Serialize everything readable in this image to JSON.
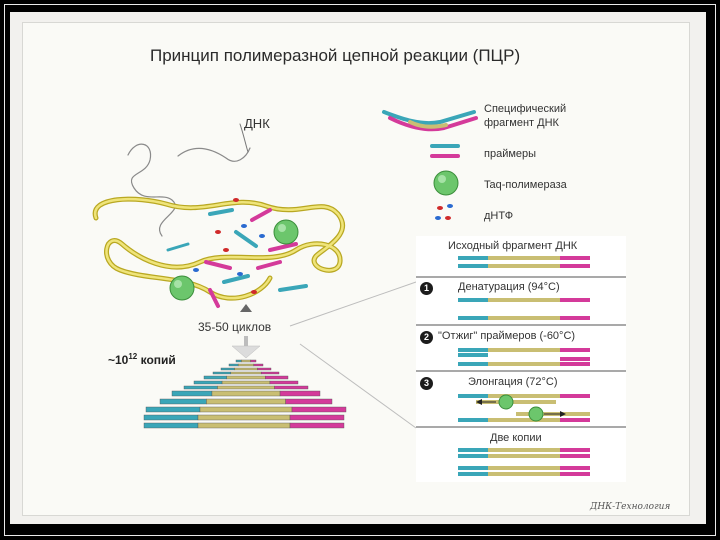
{
  "title": "Принцип полимеразной цепной реакции (ПЦР)",
  "dna_label": "ДНК",
  "cycles_label": "35-50 циклов",
  "copies": {
    "prefix": "~10",
    "exponent": "12",
    "suffix": " копий"
  },
  "legend": {
    "fragment": [
      "Специфический",
      "фрагмент ДНК"
    ],
    "primers": "праймеры",
    "taq": "Taq-полимераза",
    "dntp": "дНТФ"
  },
  "steps": {
    "initial": "Исходный фрагмент ДНК",
    "step1": {
      "num": "1",
      "label": "Денатурация (94°С)"
    },
    "step2": {
      "num": "2",
      "label": "\"Отжиг\" праймеров (-60°С)"
    },
    "step3": {
      "num": "3",
      "label": "Элонгация (72°С)"
    },
    "final": "Две копии"
  },
  "signature": "ДНК-Технология",
  "colors": {
    "teal": "#3aa6b8",
    "pink": "#d43a9a",
    "khaki": "#c9be73",
    "yellow": "#d8c93a",
    "taq_green": "#6cc66c",
    "dntp_red": "#d02a2a",
    "dntp_blue": "#2a6ad0"
  }
}
